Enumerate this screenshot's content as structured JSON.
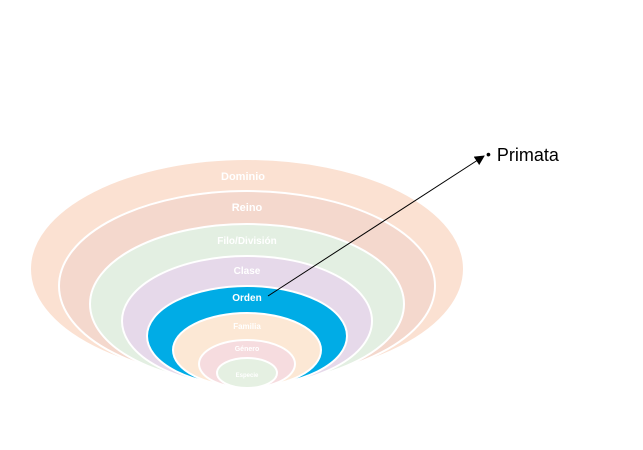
{
  "diagram": {
    "levels": [
      {
        "label": "Dominio",
        "color": "#fbe1d2"
      },
      {
        "label": "Reino",
        "color": "#f4d8cd"
      },
      {
        "label": "Filo/División",
        "color": "#e3efe2"
      },
      {
        "label": "Clase",
        "color": "#e6d9ea"
      },
      {
        "label": "Orden",
        "color": "#00ace6"
      },
      {
        "label": "Familia",
        "color": "#fce8d5"
      },
      {
        "label": "Género",
        "color": "#f6dcdf"
      },
      {
        "label": "Especie",
        "color": "#e5f0e2"
      }
    ],
    "ring_stroke": "#ffffff",
    "highlighted_level": "Orden",
    "callout": {
      "bullet": "•",
      "text": "Primata"
    },
    "arrow_color": "#000000"
  }
}
